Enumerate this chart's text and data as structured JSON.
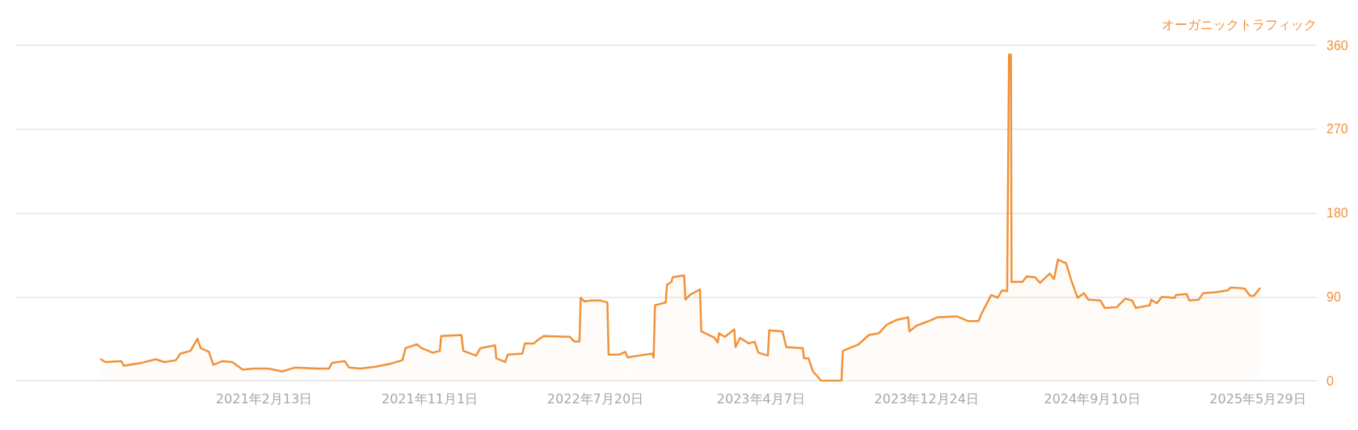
{
  "chart_data": {
    "type": "area",
    "ylabel": "オーガニックトラフィック",
    "x": [
      "2020-06-01",
      "2020-06-08",
      "2020-07-03",
      "2020-07-07",
      "2020-08-03",
      "2020-08-26",
      "2020-09-09",
      "2020-09-27",
      "2020-10-04",
      "2020-10-20",
      "2020-10-31",
      "2020-11-05",
      "2020-11-18",
      "2020-11-25",
      "2020-12-09",
      "2020-12-25",
      "2021-01-10",
      "2021-01-28",
      "2021-02-19",
      "2021-03-14",
      "2021-04-02",
      "2021-05-08",
      "2021-05-26",
      "2021-05-31",
      "2021-06-20",
      "2021-06-27",
      "2021-07-15",
      "2021-08-07",
      "2021-08-30",
      "2021-09-19",
      "2021-09-24",
      "2021-10-12",
      "2021-10-19",
      "2021-11-06",
      "2021-11-17",
      "2021-11-19",
      "2021-12-21",
      "2021-12-24",
      "2022-01-13",
      "2022-01-20",
      "2022-02-12",
      "2022-02-14",
      "2022-02-28",
      "2022-03-04",
      "2022-03-27",
      "2022-03-31",
      "2022-04-14",
      "2022-04-21",
      "2022-04-30",
      "2022-06-10",
      "2022-06-17",
      "2022-06-25",
      "2022-06-27",
      "2022-07-03",
      "2022-07-12",
      "2022-07-28",
      "2022-08-08",
      "2022-08-10",
      "2022-08-27",
      "2022-09-05",
      "2022-09-09",
      "2022-09-27",
      "2022-10-18",
      "2022-10-20",
      "2022-10-22",
      "2022-11-08",
      "2022-11-10",
      "2022-11-17",
      "2022-11-19",
      "2022-12-07",
      "2022-12-09",
      "2022-12-16",
      "2023-01-01",
      "2023-01-03",
      "2023-01-24",
      "2023-01-29",
      "2023-01-31",
      "2023-02-09",
      "2023-02-24",
      "2023-02-26",
      "2023-03-05",
      "2023-03-19",
      "2023-03-28",
      "2023-04-03",
      "2023-04-18",
      "2023-04-20",
      "2023-05-11",
      "2023-05-17",
      "2023-06-12",
      "2023-06-14",
      "2023-06-21",
      "2023-06-28",
      "2023-07-11",
      "2023-08-12",
      "2023-08-14",
      "2023-09-08",
      "2023-09-24",
      "2023-10-10",
      "2023-10-22",
      "2023-11-06",
      "2023-11-25",
      "2023-11-27",
      "2023-12-08",
      "2023-12-31",
      "2024-01-10",
      "2024-02-10",
      "2024-02-27",
      "2024-03-15",
      "2024-03-19",
      "2024-04-04",
      "2024-04-14",
      "2024-04-21",
      "2024-04-29",
      "2024-05-02",
      "2024-05-05",
      "2024-05-06",
      "2024-05-23",
      "2024-05-30",
      "2024-06-12",
      "2024-06-20",
      "2024-07-05",
      "2024-07-12",
      "2024-07-18",
      "2024-07-31",
      "2024-08-09",
      "2024-08-18",
      "2024-08-28",
      "2024-09-04",
      "2024-09-23",
      "2024-09-30",
      "2024-10-19",
      "2024-11-01",
      "2024-11-12",
      "2024-11-18",
      "2024-12-10",
      "2024-12-12",
      "2024-12-21",
      "2024-12-29",
      "2025-01-18",
      "2025-01-20",
      "2025-02-06",
      "2025-02-10",
      "2025-02-25",
      "2025-03-04",
      "2025-03-24",
      "2025-04-12",
      "2025-04-16",
      "2025-05-08",
      "2025-05-17",
      "2025-05-23",
      "2025-06-01"
    ],
    "values": [
      23,
      20,
      21,
      16,
      19,
      23,
      20,
      22,
      29,
      32,
      45,
      35,
      31,
      17,
      21,
      20,
      12,
      13,
      13,
      10,
      14,
      13,
      13,
      19,
      21,
      14,
      13,
      15,
      18,
      22,
      35,
      39,
      35,
      30,
      32,
      48,
      49,
      32,
      27,
      35,
      38,
      24,
      20,
      28,
      29,
      40,
      40,
      44,
      48,
      47,
      42,
      42,
      89,
      85,
      86,
      86,
      84,
      28,
      28,
      31,
      25,
      27,
      29,
      25,
      81,
      84,
      103,
      106,
      111,
      113,
      87,
      92,
      98,
      53,
      46,
      41,
      51,
      47,
      55,
      36,
      46,
      40,
      42,
      30,
      27,
      54,
      53,
      36,
      35,
      24,
      24,
      10,
      0,
      0,
      32,
      39,
      49,
      51,
      60,
      65,
      68,
      53,
      59,
      65,
      68,
      69,
      64,
      64,
      71,
      92,
      89,
      97,
      96,
      350,
      350,
      106,
      106,
      112,
      111,
      105,
      115,
      109,
      130,
      126,
      106,
      89,
      94,
      87,
      86,
      78,
      79,
      88,
      86,
      78,
      81,
      87,
      83,
      90,
      89,
      92,
      93,
      86,
      87,
      94,
      95,
      97,
      100,
      99,
      91,
      91,
      99
    ],
    "color": "#f0923a",
    "xlim": [
      "2020-01-18",
      "2025-08-30"
    ],
    "xticks": [
      {
        "value": "2021-02-13",
        "label": "2021年2月13日"
      },
      {
        "value": "2021-11-01",
        "label": "2021年11月1日"
      },
      {
        "value": "2022-07-20",
        "label": "2022年7月20日"
      },
      {
        "value": "2023-04-07",
        "label": "2023年4月7日"
      },
      {
        "value": "2023-12-24",
        "label": "2023年12月24日"
      },
      {
        "value": "2024-09-10",
        "label": "2024年9月10日"
      },
      {
        "value": "2025-05-29",
        "label": "2025年5月29日"
      }
    ],
    "ylim": [
      0,
      360
    ],
    "yticks": [
      0,
      90,
      180,
      270,
      360
    ],
    "grid": "y",
    "marker": "none",
    "line_style": "solid"
  }
}
